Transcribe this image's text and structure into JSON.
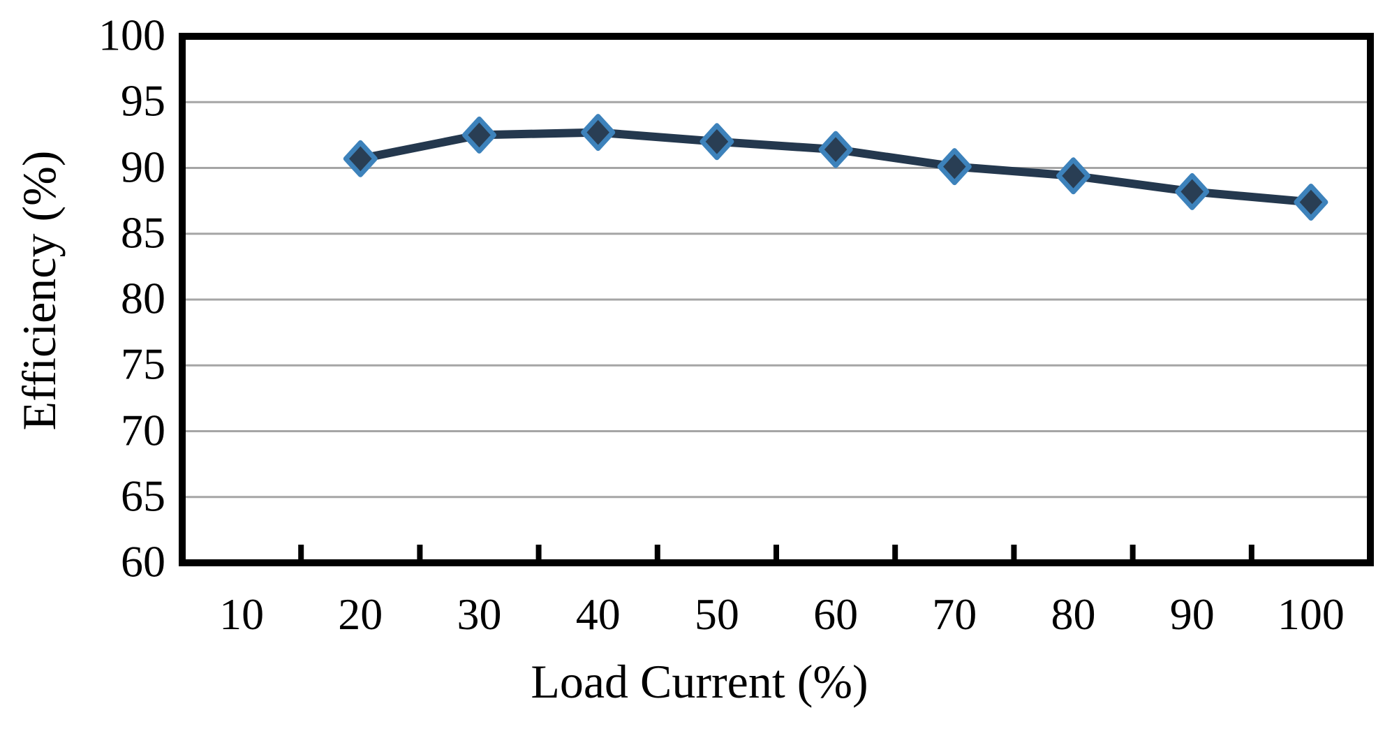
{
  "chart_data": {
    "type": "line",
    "title": "",
    "xlabel": "Load Current (%)",
    "ylabel": "Efficiency (%)",
    "x_axis_mode": "category",
    "x_ticks": [
      10,
      20,
      30,
      40,
      50,
      60,
      70,
      80,
      90,
      100
    ],
    "y_ticks": [
      100,
      95,
      90,
      85,
      80,
      75,
      70,
      65,
      60
    ],
    "ylim": [
      60,
      100
    ],
    "grid": "horizontal-gray-lines",
    "legend": "none",
    "series": [
      {
        "name": "Efficiency",
        "marker": "diamond",
        "x": [
          20,
          30,
          40,
          50,
          60,
          70,
          80,
          90,
          100
        ],
        "values": [
          90.7,
          92.5,
          92.7,
          92.0,
          91.4,
          90.1,
          89.4,
          88.2,
          87.4
        ]
      }
    ],
    "colors": {
      "line": "#24384e",
      "marker_fill": "#293e54",
      "marker_border": "#3d82bb",
      "gridline": "#a5a5a5",
      "axis_border": "#000000",
      "background": "#ffffff",
      "text": "#000000"
    }
  }
}
